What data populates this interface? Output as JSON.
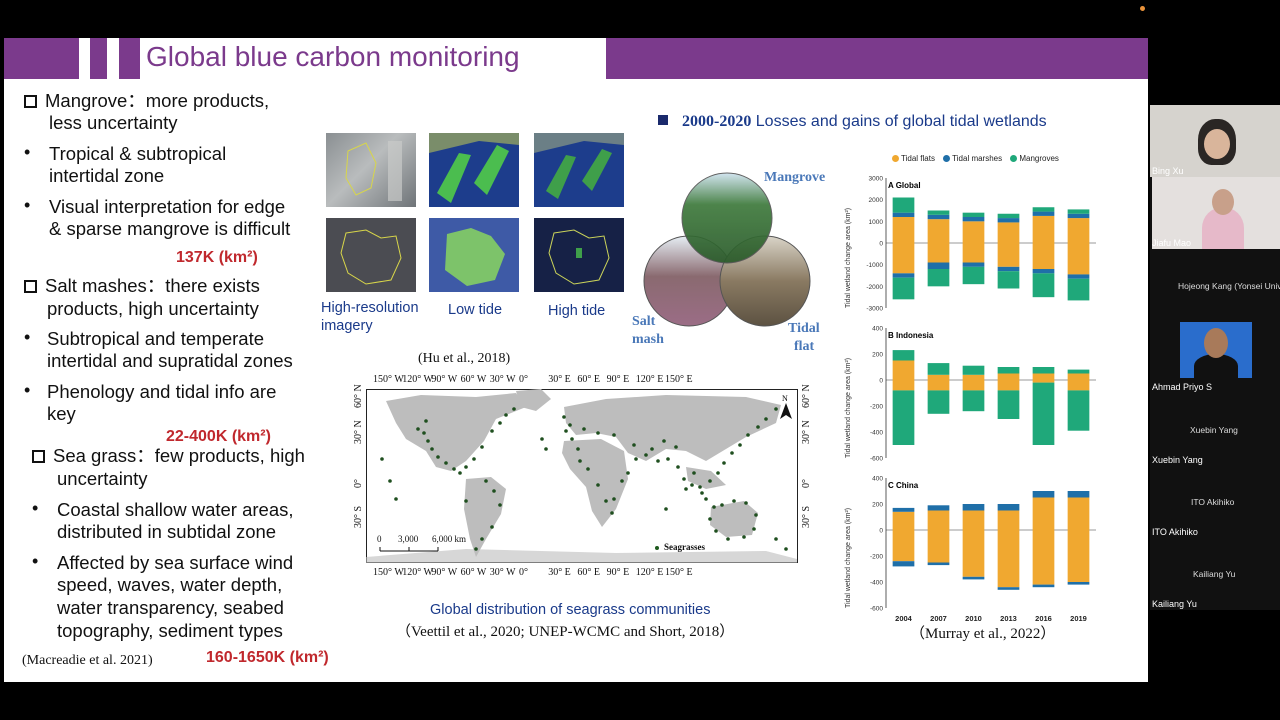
{
  "slide": {
    "title": "Global blue carbon monitoring",
    "left_column": {
      "mangrove_heading": "Mangrove：more products,",
      "mangrove_heading_2": "less uncertainty",
      "mangrove_b1_1": "Tropical & subtropical",
      "mangrove_b1_2": "intertidal zone",
      "mangrove_b2_1": "Visual interpretation for edge",
      "mangrove_b2_2": "& sparse mangrove is difficult",
      "mangrove_area": "137K (km²)",
      "salt_heading": "Salt mashes：there exists",
      "salt_heading_2": "products, high uncertainty",
      "salt_b1_1": "Subtropical and temperate",
      "salt_b1_2": "intertidal and supratidal zones",
      "salt_b2_1": "Phenology and tidal info are",
      "salt_b2_2": "key",
      "salt_area": "22-400K (km²)",
      "sea_heading": "Sea grass：few products, high",
      "sea_heading_2": "uncertainty",
      "sea_b1_1": "Coastal shallow water areas,",
      "sea_b1_2": "distributed in subtidal zone",
      "sea_b2_1": "Affected by sea surface wind",
      "sea_b2_2": "speed, waves, water depth,",
      "sea_b2_3": "water transparency, seabed",
      "sea_b2_4": "topography, sediment types",
      "ref_macreadie": "(Macreadie et al. 2021)",
      "sea_area": "160-1650K (km²)"
    },
    "images": {
      "cap_highres_1": "High-resolution",
      "cap_highres_2": "imagery",
      "cap_low": "Low tide",
      "cap_high": "High tide"
    },
    "venn": {
      "mangrove": "Mangrove",
      "salt_1": "Salt",
      "salt_2": "mash",
      "tidal_1": "Tidal",
      "tidal_2": "flat"
    },
    "map": {
      "ref_hu": "(Hu et al., 2018)",
      "top_lon": [
        "150° W",
        "120° W",
        "90° W",
        "60° W",
        "30° W",
        "0°",
        "30° E",
        "60° E",
        "90° E",
        "120° E",
        "150° E"
      ],
      "lat_left": [
        "60° N",
        "30° N",
        "0°",
        "30° S"
      ],
      "lat_right": [
        "60° N",
        "30° N",
        "0°",
        "30° S"
      ],
      "scale_0": "0",
      "scale_1": "3,000",
      "scale_2": "6,000 km",
      "legend": "Seagrasses",
      "caption": "Global distribution of seagrass communities",
      "ref_veettil": "（Veettil et al., 2020; UNEP-WCMC and Short, 2018）"
    },
    "wetland": {
      "heading_bold": "2000-2020",
      "heading_rest": " Losses and gains of global tidal wetlands",
      "legend": [
        "Tidal flats",
        "Tidal marshes",
        "Mangroves"
      ],
      "colors": {
        "tidal_flats": "#f0a830",
        "tidal_marshes": "#1f6fa8",
        "mangroves": "#1fa87a"
      },
      "ylabel": "Tidal wetland change area (km²)",
      "ref_murray": "（Murray et al., 2022）"
    }
  },
  "chart_data": [
    {
      "type": "bar",
      "title": "A Global",
      "categories": [
        "2004",
        "2007",
        "2010",
        "2013",
        "2016",
        "2019"
      ],
      "yticks": [
        "3000",
        "2000",
        "1000",
        "0",
        "-1000",
        "-2000",
        "-3000"
      ],
      "ylim": [
        -3000,
        3000
      ],
      "series": [
        {
          "name": "Mangroves",
          "values": [
            700,
            200,
            200,
            200,
            200,
            200
          ]
        },
        {
          "name": "Tidal marshes",
          "values": [
            200,
            200,
            200,
            200,
            200,
            200
          ]
        },
        {
          "name": "Tidal flats",
          "values": [
            1200,
            1100,
            1000,
            950,
            1250,
            1150
          ]
        },
        {
          "name": "Tidal flats",
          "values": [
            -1400,
            -900,
            -900,
            -1100,
            -1200,
            -1450
          ]
        },
        {
          "name": "Tidal marshes",
          "values": [
            -200,
            -300,
            -200,
            -200,
            -200,
            -200
          ]
        },
        {
          "name": "Mangroves",
          "values": [
            -1000,
            -800,
            -800,
            -800,
            -1100,
            -1000
          ]
        }
      ]
    },
    {
      "type": "bar",
      "title": "B Indonesia",
      "categories": [
        "2004",
        "2007",
        "2010",
        "2013",
        "2016",
        "2019"
      ],
      "yticks": [
        "400",
        "200",
        "0",
        "-200",
        "-400",
        "-600"
      ],
      "ylim": [
        -600,
        400
      ],
      "series": [
        {
          "name": "Mangroves",
          "values": [
            80,
            90,
            70,
            50,
            50,
            30
          ]
        },
        {
          "name": "Tidal flats",
          "values": [
            150,
            40,
            40,
            50,
            50,
            50
          ]
        },
        {
          "name": "Tidal flats",
          "values": [
            -80,
            -80,
            -80,
            -80,
            -20,
            -80
          ]
        },
        {
          "name": "Mangroves",
          "values": [
            -420,
            -180,
            -160,
            -220,
            -480,
            -310
          ]
        }
      ]
    },
    {
      "type": "bar",
      "title": "C China",
      "categories": [
        "2004",
        "2007",
        "2010",
        "2013",
        "2016",
        "2019"
      ],
      "yticks": [
        "400",
        "200",
        "0",
        "-200",
        "-400",
        "-600"
      ],
      "ylim": [
        -600,
        400
      ],
      "series": [
        {
          "name": "Tidal marshes",
          "values": [
            30,
            40,
            50,
            50,
            50,
            50
          ]
        },
        {
          "name": "Tidal flats",
          "values": [
            140,
            150,
            150,
            150,
            250,
            250
          ]
        },
        {
          "name": "Tidal flats",
          "values": [
            -240,
            -250,
            -360,
            -440,
            -420,
            -400
          ]
        },
        {
          "name": "Tidal marshes",
          "values": [
            -40,
            -20,
            -20,
            -20,
            -20,
            -20
          ]
        }
      ]
    }
  ],
  "participants": {
    "bing": "Bing Xu",
    "jiafu": "Jiafu Mao",
    "hojeong": "Hojeong Kang (Yonsei Univer...",
    "ahmad": "Ahmad Priyo S",
    "xuebin_c": "Xuebin Yang",
    "xuebin": "Xuebin Yang",
    "ito_c": "ITO Akihiko",
    "ito": "ITO Akihiko",
    "kailiang_c": "Kailiang Yu",
    "kailiang": "Kailiang Yu"
  }
}
